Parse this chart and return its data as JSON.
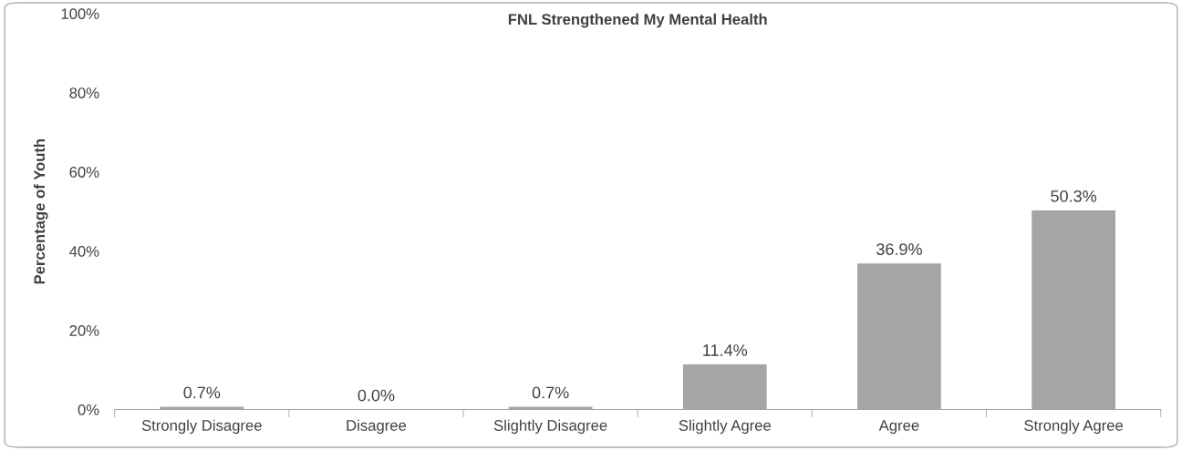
{
  "chart_data": {
    "type": "bar",
    "title": "FNL Strengthened My Mental Health",
    "ylabel": "Percentage of Youth",
    "categories": [
      "Strongly Disagree",
      "Disagree",
      "Slightly Disagree",
      "Slightly Agree",
      "Agree",
      "Strongly Agree"
    ],
    "values": [
      0.7,
      0.0,
      0.7,
      11.4,
      36.9,
      50.3
    ],
    "value_labels": [
      "0.7%",
      "0.0%",
      "0.7%",
      "11.4%",
      "36.9%",
      "50.3%"
    ],
    "color": "#a5a5a7",
    "ylim": [
      0,
      100
    ],
    "yticks": [
      {
        "value": 0,
        "label": "0%"
      },
      {
        "value": 20,
        "label": "20%"
      },
      {
        "value": 40,
        "label": "40%"
      },
      {
        "value": 60,
        "label": "60%"
      },
      {
        "value": 80,
        "label": "80%"
      },
      {
        "value": 100,
        "label": "100%"
      }
    ],
    "grid": false,
    "legend": false
  }
}
